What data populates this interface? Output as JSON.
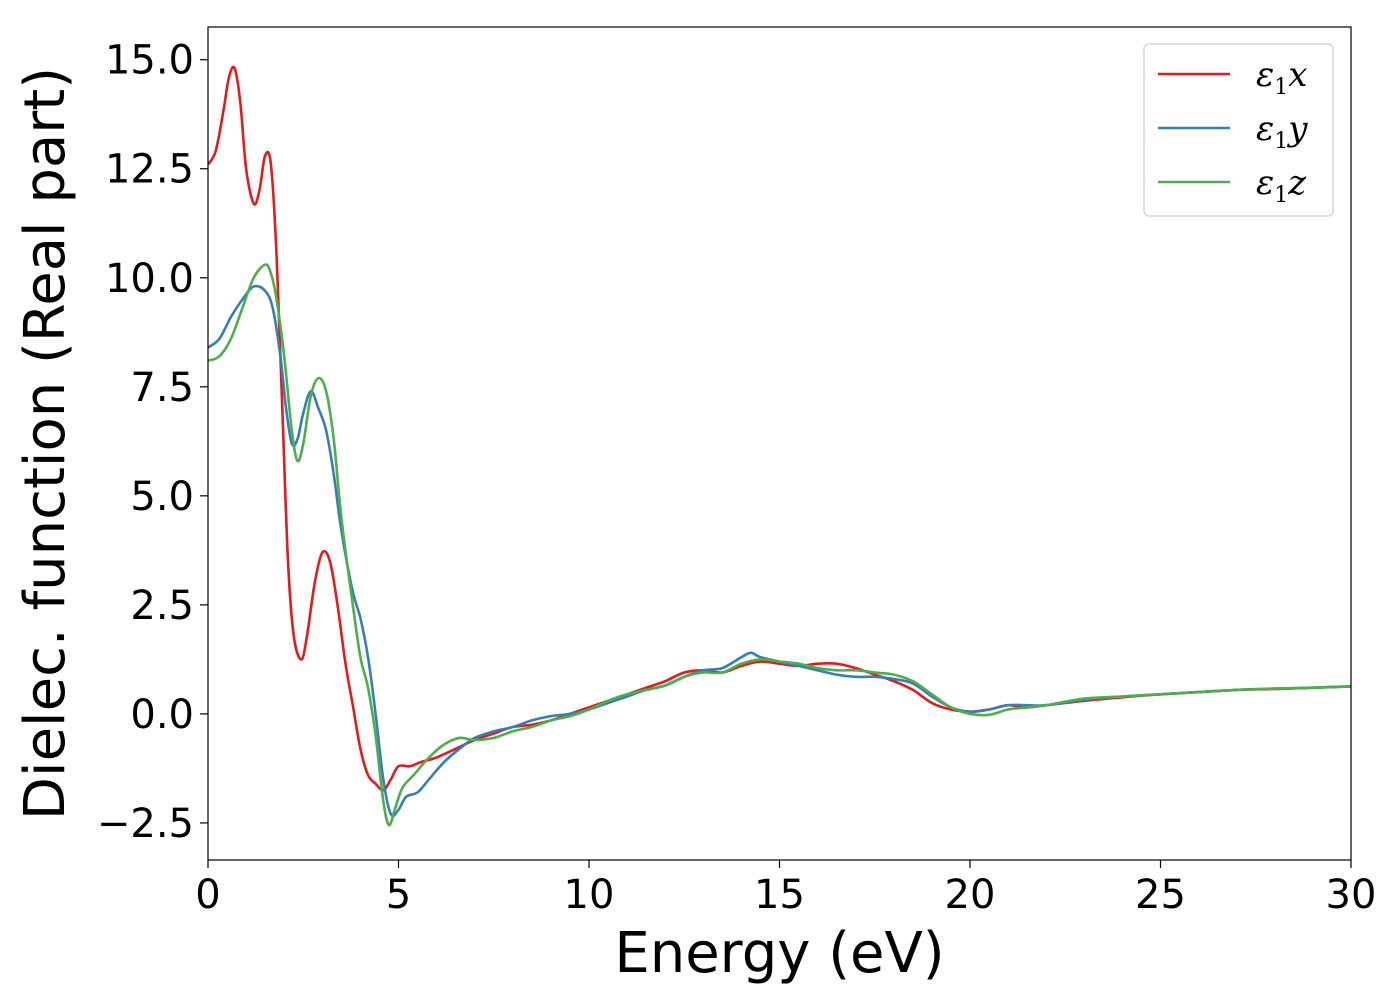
{
  "chart_data": {
    "type": "line",
    "title": "",
    "xlabel": "Energy (eV)",
    "ylabel": "Dielec. function (Real part)",
    "xlim": [
      0,
      30
    ],
    "ylim": [
      -3.35,
      15.75
    ],
    "xticks": [
      0,
      5,
      10,
      15,
      20,
      25,
      30
    ],
    "xtick_labels": [
      "0",
      "5",
      "10",
      "15",
      "20",
      "25",
      "30"
    ],
    "yticks": [
      -2.5,
      0.0,
      2.5,
      5.0,
      7.5,
      10.0,
      12.5,
      15.0
    ],
    "ytick_labels": [
      "−2.5",
      "0.0",
      "2.5",
      "5.0",
      "7.5",
      "10.0",
      "12.5",
      "15.0"
    ],
    "grid": false,
    "legend_position": "top-right",
    "series": [
      {
        "name": "ε₁x",
        "legend_main": "ε",
        "legend_sub": "1",
        "legend_tail": "x",
        "color": "#e41a1c",
        "x": [
          0,
          0.2,
          0.4,
          0.55,
          0.7,
          0.85,
          1.0,
          1.2,
          1.35,
          1.5,
          1.65,
          1.8,
          1.95,
          2.1,
          2.25,
          2.45,
          2.6,
          2.8,
          3.0,
          3.2,
          3.4,
          3.6,
          3.8,
          4.0,
          4.2,
          4.4,
          4.6,
          4.8,
          5.0,
          5.3,
          5.6,
          6.0,
          6.5,
          7.0,
          7.5,
          8.0,
          8.5,
          9.0,
          9.5,
          10.0,
          10.5,
          11.0,
          11.5,
          12.0,
          12.5,
          13.0,
          13.5,
          14.0,
          14.5,
          15.0,
          15.5,
          16.0,
          16.5,
          17.0,
          17.5,
          18.0,
          18.5,
          19.0,
          19.5,
          20.0,
          20.5,
          21.0,
          21.5,
          22.0,
          23.0,
          24.0,
          25.0,
          26.0,
          27.0,
          28.0,
          29.0,
          30.0
        ],
        "values": [
          12.6,
          12.9,
          13.8,
          14.6,
          14.8,
          14.0,
          12.5,
          11.7,
          12.0,
          12.8,
          12.6,
          10.5,
          7.0,
          3.5,
          1.8,
          1.25,
          1.8,
          3.0,
          3.7,
          3.5,
          2.5,
          1.2,
          0.2,
          -0.8,
          -1.4,
          -1.6,
          -1.75,
          -1.5,
          -1.2,
          -1.2,
          -1.1,
          -1.0,
          -0.8,
          -0.6,
          -0.45,
          -0.3,
          -0.25,
          -0.15,
          0.0,
          0.15,
          0.3,
          0.45,
          0.6,
          0.75,
          0.95,
          1.0,
          0.95,
          1.1,
          1.2,
          1.15,
          1.1,
          1.15,
          1.15,
          1.05,
          0.9,
          0.75,
          0.55,
          0.25,
          0.1,
          0.05,
          0.1,
          0.2,
          0.15,
          0.2,
          0.3,
          0.38,
          0.45,
          0.5,
          0.55,
          0.57,
          0.6,
          0.63
        ]
      },
      {
        "name": "ε₁y",
        "legend_main": "ε",
        "legend_sub": "1",
        "legend_tail": "y",
        "color": "#377eb8",
        "x": [
          0,
          0.3,
          0.6,
          0.9,
          1.2,
          1.5,
          1.7,
          1.9,
          2.05,
          2.2,
          2.35,
          2.5,
          2.7,
          2.9,
          3.1,
          3.3,
          3.5,
          3.8,
          4.0,
          4.2,
          4.4,
          4.6,
          4.8,
          5.0,
          5.2,
          5.5,
          5.8,
          6.2,
          6.6,
          7.0,
          7.5,
          8.0,
          8.5,
          9.0,
          9.5,
          10.0,
          10.5,
          11.0,
          11.5,
          12.0,
          12.5,
          13.0,
          13.5,
          14.0,
          14.25,
          14.5,
          15.0,
          15.5,
          16.0,
          16.5,
          17.0,
          17.5,
          18.0,
          18.5,
          19.0,
          19.5,
          20.0,
          20.5,
          21.0,
          21.5,
          22.0,
          23.0,
          24.0,
          25.0,
          26.0,
          27.0,
          28.0,
          29.0,
          30.0
        ],
        "values": [
          8.4,
          8.6,
          9.1,
          9.5,
          9.8,
          9.7,
          9.3,
          8.2,
          7.0,
          6.2,
          6.3,
          6.9,
          7.4,
          7.0,
          6.5,
          5.5,
          4.2,
          2.8,
          2.2,
          1.3,
          0.0,
          -1.5,
          -2.3,
          -2.2,
          -1.9,
          -1.8,
          -1.5,
          -1.1,
          -0.8,
          -0.55,
          -0.4,
          -0.3,
          -0.15,
          -0.05,
          0.0,
          0.1,
          0.25,
          0.4,
          0.55,
          0.65,
          0.85,
          1.0,
          1.05,
          1.3,
          1.4,
          1.3,
          1.2,
          1.1,
          1.0,
          0.9,
          0.85,
          0.85,
          0.8,
          0.7,
          0.4,
          0.15,
          0.05,
          0.1,
          0.2,
          0.2,
          0.2,
          0.32,
          0.4,
          0.45,
          0.5,
          0.55,
          0.58,
          0.6,
          0.63
        ]
      },
      {
        "name": "ε₁z",
        "legend_main": "ε",
        "legend_sub": "1",
        "legend_tail": "z",
        "color": "#4daf4a",
        "x": [
          0,
          0.3,
          0.6,
          0.9,
          1.2,
          1.5,
          1.65,
          1.8,
          2.0,
          2.2,
          2.35,
          2.5,
          2.7,
          2.9,
          3.1,
          3.3,
          3.5,
          3.8,
          4.0,
          4.2,
          4.4,
          4.6,
          4.75,
          4.9,
          5.1,
          5.4,
          5.8,
          6.2,
          6.6,
          7.0,
          7.5,
          8.0,
          8.5,
          9.0,
          9.5,
          10.0,
          10.5,
          11.0,
          11.5,
          12.0,
          12.5,
          13.0,
          13.5,
          14.0,
          14.5,
          15.0,
          15.5,
          16.0,
          16.5,
          17.0,
          17.5,
          18.0,
          18.5,
          19.0,
          19.5,
          20.0,
          20.5,
          21.0,
          21.5,
          22.0,
          23.0,
          24.0,
          25.0,
          26.0,
          27.0,
          28.0,
          29.0,
          30.0
        ],
        "values": [
          8.1,
          8.2,
          8.6,
          9.3,
          10.0,
          10.3,
          10.1,
          9.5,
          8.2,
          6.5,
          5.8,
          6.2,
          7.3,
          7.7,
          7.4,
          6.3,
          4.5,
          2.5,
          1.3,
          0.6,
          -0.5,
          -2.0,
          -2.55,
          -2.2,
          -1.7,
          -1.4,
          -1.0,
          -0.7,
          -0.55,
          -0.6,
          -0.55,
          -0.4,
          -0.3,
          -0.15,
          -0.05,
          0.1,
          0.3,
          0.45,
          0.55,
          0.65,
          0.85,
          0.95,
          0.95,
          1.15,
          1.25,
          1.2,
          1.15,
          1.05,
          1.0,
          1.0,
          0.95,
          0.9,
          0.75,
          0.45,
          0.15,
          0.0,
          -0.02,
          0.1,
          0.15,
          0.2,
          0.35,
          0.4,
          0.45,
          0.5,
          0.55,
          0.58,
          0.6,
          0.63
        ]
      }
    ]
  }
}
